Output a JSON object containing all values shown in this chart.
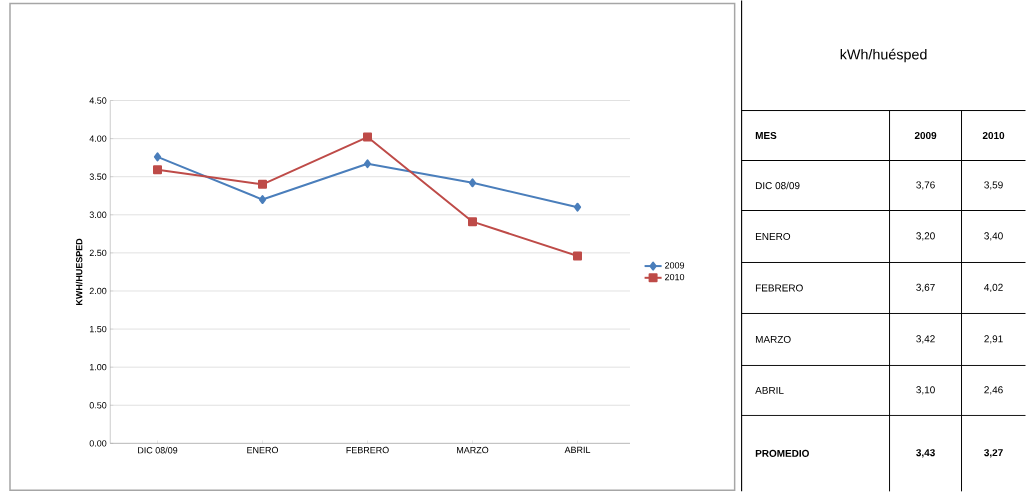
{
  "chart_data": {
    "type": "line",
    "title": "kWh/huésped",
    "ylabel": "KWH/HUESPED",
    "categories": [
      "DIC 08/09",
      "ENERO",
      "FEBRERO",
      "MARZO",
      "ABRIL"
    ],
    "series": [
      {
        "name": "2009",
        "color": "#4a7ebb",
        "marker": "diamond",
        "values": [
          3.76,
          3.2,
          3.67,
          3.42,
          3.1
        ]
      },
      {
        "name": "2010",
        "color": "#be4b48",
        "marker": "square",
        "values": [
          3.59,
          3.4,
          4.02,
          2.91,
          2.46
        ]
      }
    ],
    "ylim": [
      0,
      4.5
    ],
    "yticks": [
      {
        "value": 0,
        "label": "0.00"
      },
      {
        "value": 0.5,
        "label": "0.50"
      },
      {
        "value": 1,
        "label": "1.00"
      },
      {
        "value": 1.5,
        "label": "1.50"
      },
      {
        "value": 2,
        "label": "2.00"
      },
      {
        "value": 2.5,
        "label": "2.50"
      },
      {
        "value": 3,
        "label": "3.00"
      },
      {
        "value": 3.5,
        "label": "3.50"
      },
      {
        "value": 4,
        "label": "4.00"
      },
      {
        "value": 4.5,
        "label": "4.50"
      }
    ],
    "grid": "y",
    "legend": "right",
    "line_style": "solid",
    "annotations": [
      "MES",
      "3,76",
      "3,59",
      "3,20",
      "3,40",
      "3,67",
      "4,02",
      "3,42",
      "2,91",
      "3,10",
      "2,46",
      "PROMEDIO",
      "3,43",
      "3,27"
    ]
  }
}
